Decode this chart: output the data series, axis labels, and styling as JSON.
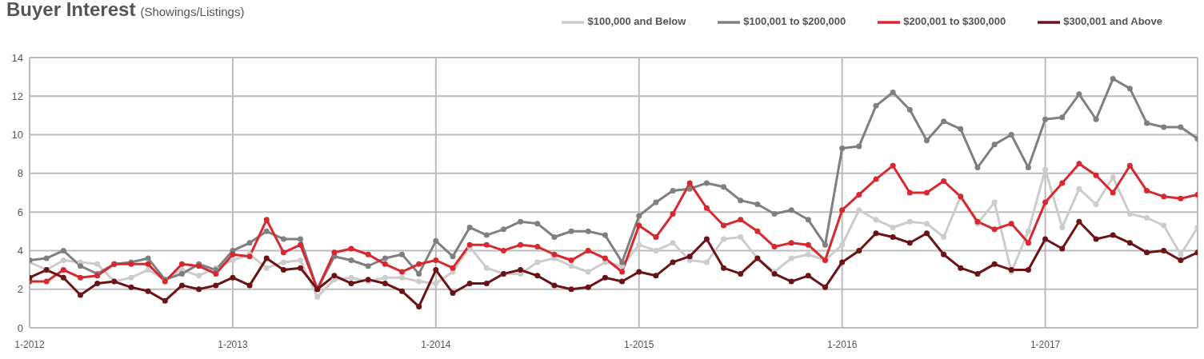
{
  "chart_data": {
    "type": "line",
    "title": "Buyer Interest",
    "subtitle": "(Showings/Listings)",
    "x": [
      "2012-01",
      "2012-02",
      "2012-03",
      "2012-04",
      "2012-05",
      "2012-06",
      "2012-07",
      "2012-08",
      "2012-09",
      "2012-10",
      "2012-11",
      "2012-12",
      "2013-01",
      "2013-02",
      "2013-03",
      "2013-04",
      "2013-05",
      "2013-06",
      "2013-07",
      "2013-08",
      "2013-09",
      "2013-10",
      "2013-11",
      "2013-12",
      "2014-01",
      "2014-02",
      "2014-03",
      "2014-04",
      "2014-05",
      "2014-06",
      "2014-07",
      "2014-08",
      "2014-09",
      "2014-10",
      "2014-11",
      "2014-12",
      "2015-01",
      "2015-02",
      "2015-03",
      "2015-04",
      "2015-05",
      "2015-06",
      "2015-07",
      "2015-08",
      "2015-09",
      "2015-10",
      "2015-11",
      "2015-12",
      "2016-01",
      "2016-02",
      "2016-03",
      "2016-04",
      "2016-05",
      "2016-06",
      "2016-07",
      "2016-08",
      "2016-09",
      "2016-10",
      "2016-11",
      "2016-12",
      "2017-01",
      "2017-02",
      "2017-03",
      "2017-04",
      "2017-05",
      "2017-06",
      "2017-07",
      "2017-08",
      "2017-09",
      "2017-10"
    ],
    "series": [
      {
        "name": "$100,000 and Below",
        "color": "#cccccc",
        "values": [
          3.4,
          3.0,
          3.5,
          3.4,
          3.3,
          2.4,
          2.6,
          3.0,
          2.5,
          3.0,
          2.7,
          3.1,
          3.5,
          3.8,
          3.1,
          3.4,
          3.5,
          1.6,
          2.5,
          2.6,
          2.4,
          2.6,
          2.6,
          2.4,
          2.3,
          2.9,
          4.2,
          3.1,
          2.8,
          2.8,
          3.4,
          3.6,
          3.2,
          2.9,
          3.4,
          3.2,
          4.3,
          4.0,
          4.4,
          3.5,
          3.4,
          4.6,
          4.7,
          3.6,
          2.9,
          3.6,
          3.8,
          3.5,
          4.3,
          6.1,
          5.6,
          5.2,
          5.5,
          5.4,
          4.7,
          6.8,
          5.4,
          6.5,
          2.9,
          5.0,
          8.2,
          5.2,
          7.2,
          6.4,
          7.8,
          5.9,
          5.7,
          5.3,
          3.8,
          5.2
        ]
      },
      {
        "name": "$100,001 to $200,000",
        "color": "#7f7f7f",
        "values": [
          3.5,
          3.6,
          4.0,
          3.2,
          2.8,
          3.3,
          3.4,
          3.6,
          2.5,
          2.8,
          3.3,
          3.0,
          4.0,
          4.4,
          5.0,
          4.6,
          4.6,
          2.0,
          3.7,
          3.5,
          3.2,
          3.6,
          3.8,
          2.8,
          4.5,
          3.7,
          5.2,
          4.8,
          5.1,
          5.5,
          5.4,
          4.7,
          5.0,
          5.0,
          4.8,
          3.4,
          5.8,
          6.5,
          7.1,
          7.2,
          7.5,
          7.3,
          6.6,
          6.4,
          5.9,
          6.1,
          5.6,
          4.3,
          9.3,
          9.4,
          11.5,
          12.2,
          11.3,
          9.7,
          10.7,
          10.3,
          8.3,
          9.5,
          10.0,
          8.3,
          10.8,
          10.9,
          12.1,
          10.8,
          12.9,
          12.4,
          10.6,
          10.4,
          10.4,
          9.8
        ]
      },
      {
        "name": "$200,001 to $300,000",
        "color": "#d7282f",
        "values": [
          2.4,
          2.4,
          3.0,
          2.6,
          2.7,
          3.3,
          3.3,
          3.3,
          2.4,
          3.3,
          3.2,
          2.8,
          3.8,
          3.7,
          5.6,
          3.9,
          4.3,
          2.0,
          3.9,
          4.1,
          3.8,
          3.3,
          2.9,
          3.3,
          3.5,
          3.1,
          4.3,
          4.3,
          4.0,
          4.3,
          4.2,
          3.8,
          3.5,
          4.0,
          3.6,
          2.9,
          5.3,
          4.7,
          5.9,
          7.5,
          6.2,
          5.3,
          5.6,
          5.0,
          4.2,
          4.4,
          4.3,
          3.5,
          6.1,
          6.9,
          7.7,
          8.4,
          7.0,
          7.0,
          7.6,
          6.8,
          5.5,
          5.1,
          5.4,
          4.4,
          6.5,
          7.5,
          8.5,
          7.9,
          7.0,
          8.4,
          7.1,
          6.8,
          6.7,
          6.9
        ]
      },
      {
        "name": "$300,001 and Above",
        "color": "#6b1214",
        "values": [
          2.6,
          3.0,
          2.6,
          1.7,
          2.3,
          2.4,
          2.1,
          1.9,
          1.4,
          2.2,
          2.0,
          2.2,
          2.6,
          2.2,
          3.6,
          3.0,
          3.1,
          2.0,
          2.7,
          2.3,
          2.5,
          2.3,
          1.9,
          1.1,
          3.0,
          1.8,
          2.3,
          2.3,
          2.8,
          3.0,
          2.7,
          2.2,
          2.0,
          2.1,
          2.6,
          2.4,
          2.9,
          2.7,
          3.4,
          3.7,
          4.6,
          3.1,
          2.8,
          3.6,
          2.8,
          2.4,
          2.7,
          2.1,
          3.4,
          4.0,
          4.9,
          4.7,
          4.4,
          4.9,
          3.8,
          3.1,
          2.8,
          3.3,
          3.0,
          3.0,
          4.6,
          4.1,
          5.5,
          4.6,
          4.8,
          4.4,
          3.9,
          4.0,
          3.5,
          3.9
        ]
      }
    ],
    "xlim": [
      "2012-01",
      "2017-10"
    ],
    "xticks": [
      {
        "value": "2012-01",
        "label": "1-2012"
      },
      {
        "value": "2013-01",
        "label": "1-2013"
      },
      {
        "value": "2014-01",
        "label": "1-2014"
      },
      {
        "value": "2015-01",
        "label": "1-2015"
      },
      {
        "value": "2016-01",
        "label": "1-2016"
      },
      {
        "value": "2017-01",
        "label": "1-2017"
      }
    ],
    "ylim": [
      0,
      14
    ],
    "yticks": [
      0,
      2,
      4,
      6,
      8,
      10,
      12,
      14
    ],
    "grid": true,
    "legend": "top right",
    "marker": "circle",
    "line_style": "solid"
  }
}
